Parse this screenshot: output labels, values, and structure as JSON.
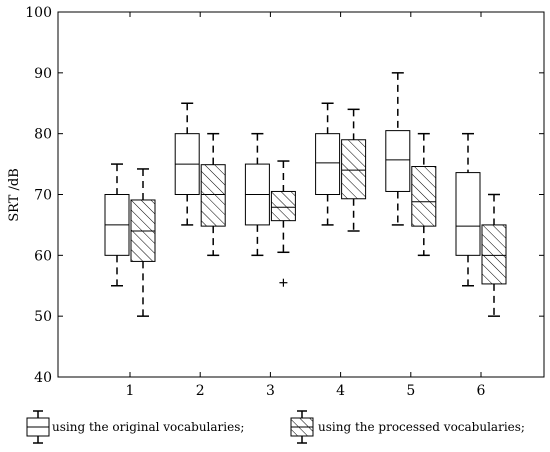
{
  "chart_data": {
    "type": "boxplot",
    "ylabel": "SRT /dB",
    "ylim": [
      40,
      100
    ],
    "yticks": [
      40,
      50,
      60,
      70,
      80,
      90,
      100
    ],
    "categories": [
      "1",
      "2",
      "3",
      "4",
      "5",
      "6"
    ],
    "grid": false,
    "legend_position": "bottom",
    "series": [
      {
        "name": "using the original vocabularies;",
        "pattern": "plain",
        "boxes": [
          {
            "min": 55,
            "q1": 60,
            "median": 65,
            "q3": 70,
            "max": 75
          },
          {
            "min": 65,
            "q1": 70,
            "median": 75,
            "q3": 80,
            "max": 85
          },
          {
            "min": 60,
            "q1": 65,
            "median": 70,
            "q3": 75,
            "max": 80
          },
          {
            "min": 65,
            "q1": 70,
            "median": 75.2,
            "q3": 80,
            "max": 85
          },
          {
            "min": 65,
            "q1": 70.5,
            "median": 75.7,
            "q3": 80.5,
            "max": 90
          },
          {
            "min": 55,
            "q1": 60,
            "median": 64.8,
            "q3": 73.6,
            "max": 80
          }
        ]
      },
      {
        "name": "using the processed vocabularies;",
        "pattern": "hatched",
        "boxes": [
          {
            "min": 50,
            "q1": 59,
            "median": 64,
            "q3": 69.1,
            "max": 74.2
          },
          {
            "min": 60,
            "q1": 64.8,
            "median": 70,
            "q3": 74.9,
            "max": 80
          },
          {
            "min": 60.5,
            "q1": 65.7,
            "median": 67.9,
            "q3": 70.5,
            "max": 75.5,
            "outliers": [
              55.5
            ]
          },
          {
            "min": 64,
            "q1": 69.3,
            "median": 74,
            "q3": 79,
            "max": 84
          },
          {
            "min": 60,
            "q1": 64.8,
            "median": 68.8,
            "q3": 74.6,
            "max": 80
          },
          {
            "min": 50,
            "q1": 55.3,
            "median": 60,
            "q3": 65,
            "max": 70
          }
        ]
      }
    ]
  }
}
